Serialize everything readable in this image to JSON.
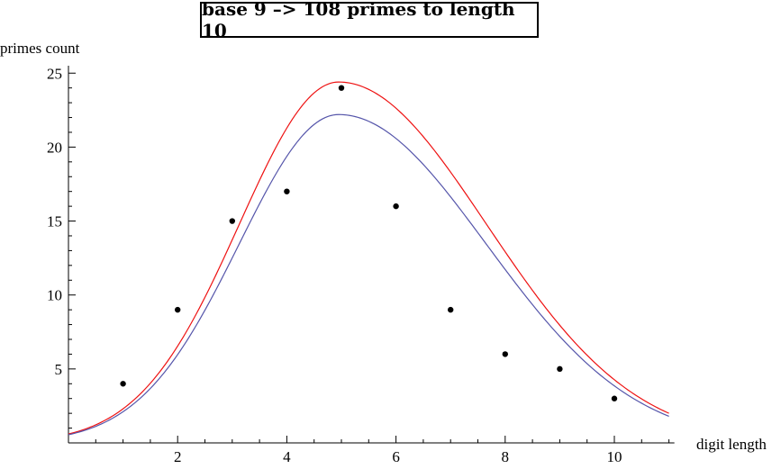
{
  "chart_data": {
    "type": "scatter",
    "title": "base 9  –>  108 primes to length 10",
    "xlabel": "digit length",
    "ylabel": "primes count",
    "xlim": [
      0,
      11.1
    ],
    "ylim": [
      0,
      25.5
    ],
    "x_ticks_major": [
      2,
      4,
      6,
      8,
      10
    ],
    "y_ticks_major": [
      5,
      10,
      15,
      20,
      25
    ],
    "grid": false,
    "points": {
      "x": [
        1,
        2,
        3,
        4,
        5,
        6,
        7,
        8,
        9,
        10
      ],
      "y": [
        4,
        9,
        15,
        17,
        24,
        16,
        9,
        6,
        5,
        3
      ],
      "color": "#000000"
    },
    "curves": [
      {
        "peak_x": 4.95,
        "peak_y": 24.4,
        "y_at_0": 0.6,
        "y_at_11": 2.0,
        "color": "#ee1111"
      },
      {
        "peak_x": 4.95,
        "peak_y": 22.2,
        "y_at_0": 0.55,
        "y_at_11": 1.8,
        "color": "#5555aa"
      }
    ]
  }
}
